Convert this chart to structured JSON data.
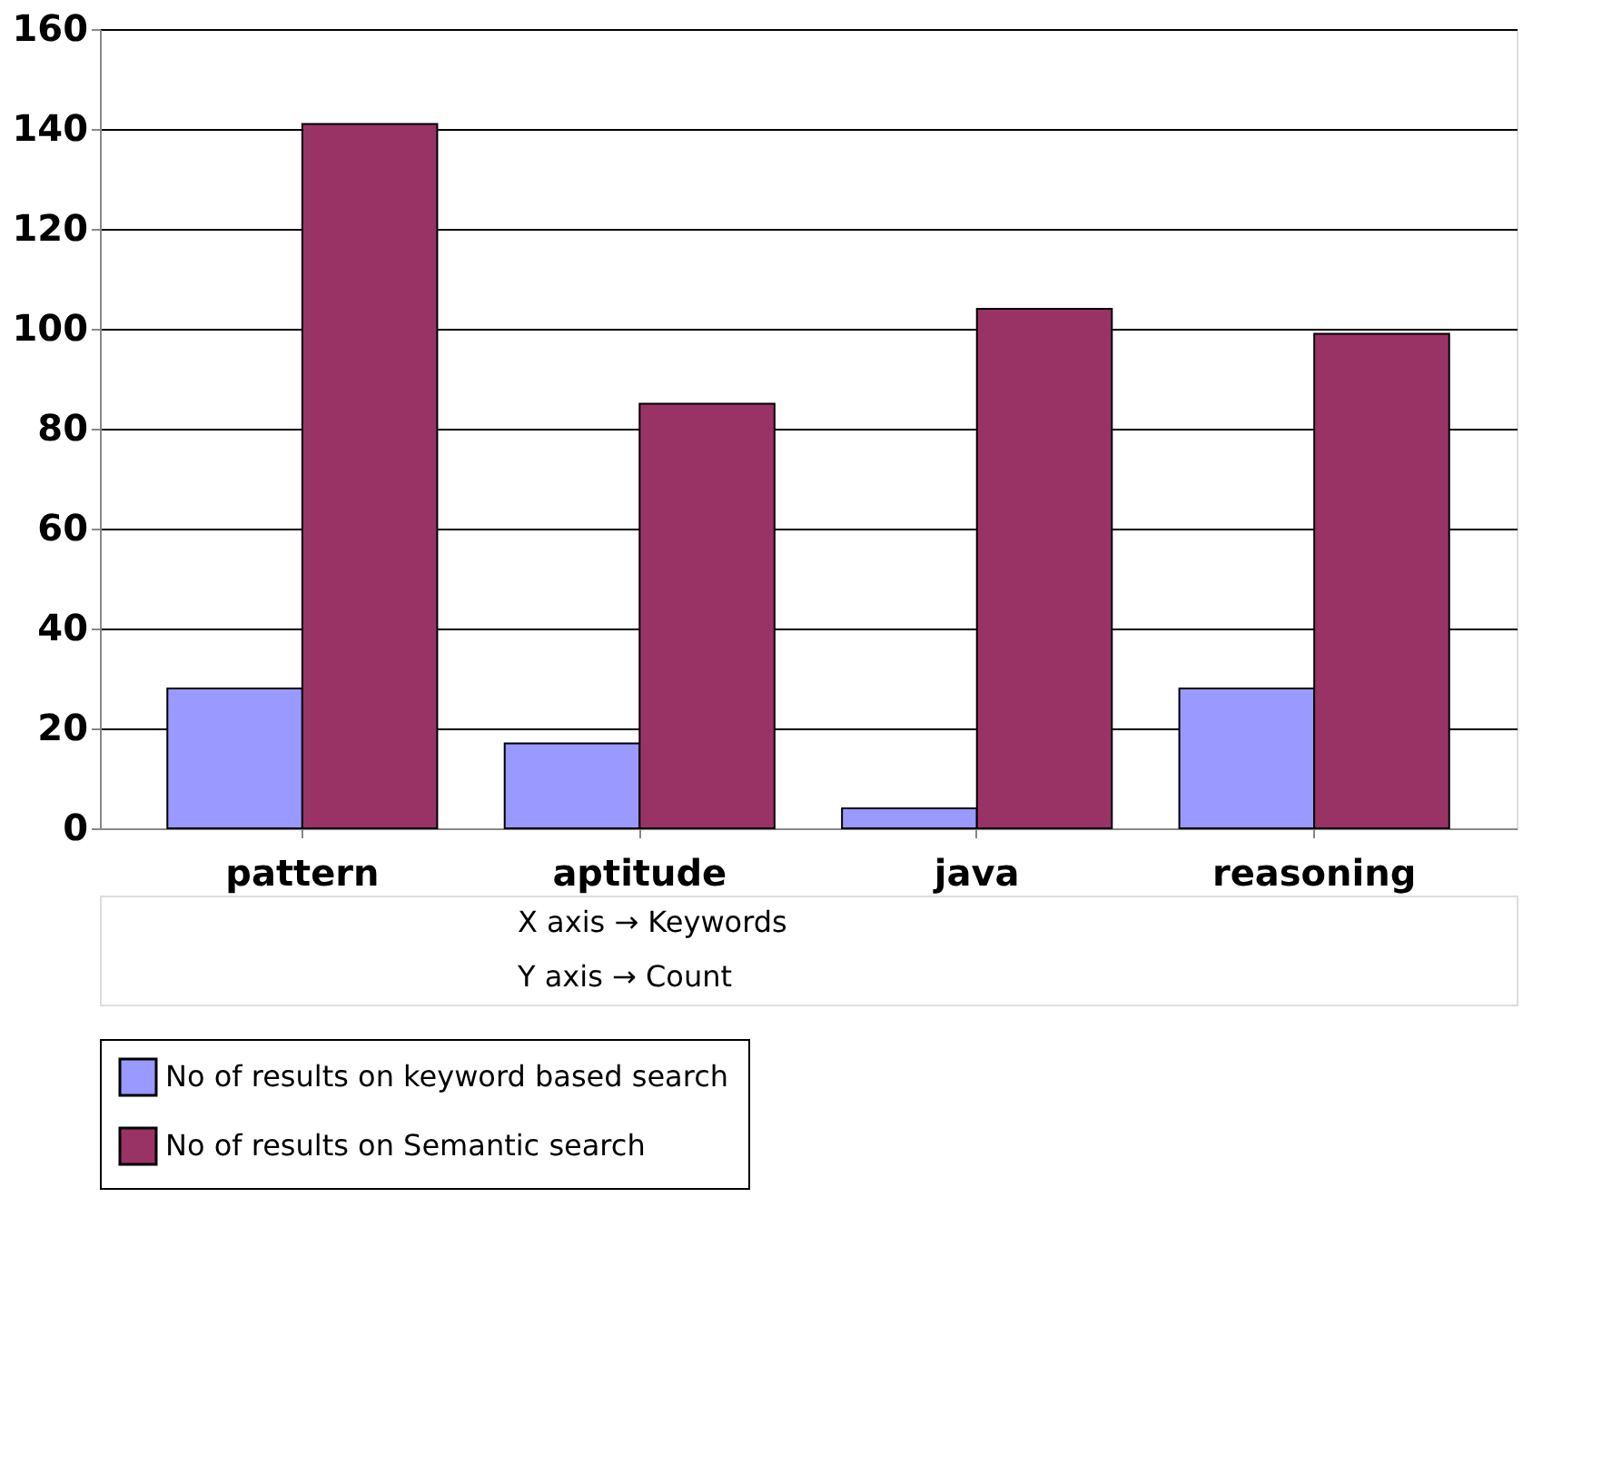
{
  "chart_data": {
    "type": "bar",
    "categories": [
      "pattern",
      "aptitude",
      "java",
      "reasoning"
    ],
    "series": [
      {
        "name": "No of results on keyword based search",
        "color": "#9999ff",
        "values": [
          28,
          17,
          4,
          28
        ]
      },
      {
        "name": "No of results on Semantic search",
        "color": "#993366",
        "values": [
          141,
          85,
          104,
          99
        ]
      }
    ],
    "ylim": [
      0,
      160
    ],
    "yticks": [
      0,
      20,
      40,
      60,
      80,
      100,
      120,
      140,
      160
    ],
    "grid": "y",
    "legend": "bottom",
    "annotations": [
      "X axis  → Keywords",
      "Y axis  → Count"
    ]
  }
}
